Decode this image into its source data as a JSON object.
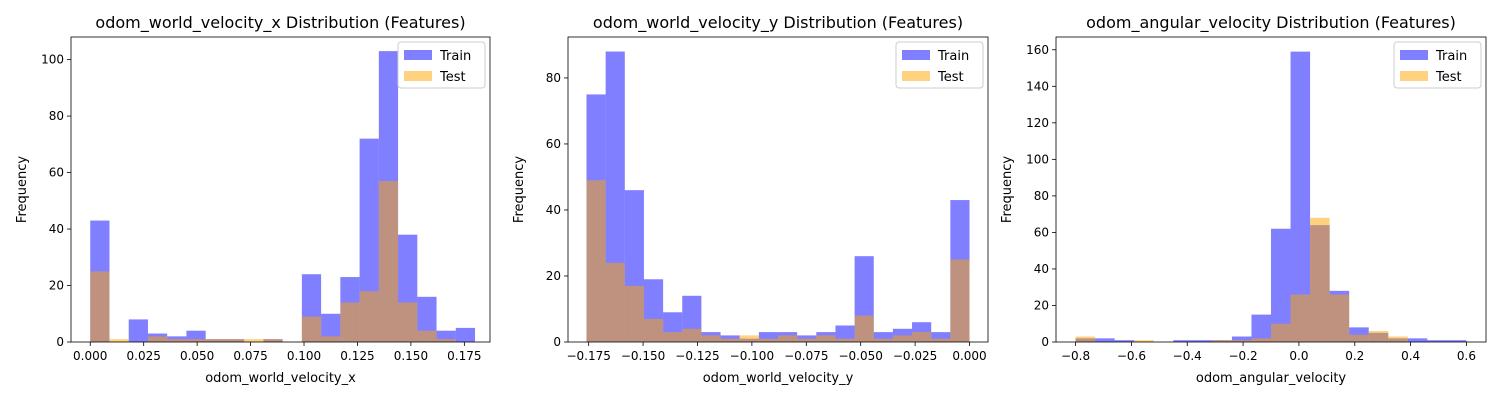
{
  "colors": {
    "train": "#0000ff",
    "test": "#ffa500",
    "alpha": 0.5
  },
  "chart_data": [
    {
      "type": "bar",
      "title": "odom_world_velocity_x Distribution (Features)",
      "xlabel": "odom_world_velocity_x",
      "ylabel": "Frequency",
      "xlim": [
        -0.009,
        0.187
      ],
      "ylim": [
        0,
        108
      ],
      "xticks": [
        0.0,
        0.025,
        0.05,
        0.075,
        0.1,
        0.125,
        0.15,
        0.175
      ],
      "xtick_labels": [
        "0.000",
        "0.025",
        "0.050",
        "0.075",
        "0.100",
        "0.125",
        "0.150",
        "0.175"
      ],
      "yticks": [
        0,
        20,
        40,
        60,
        80,
        100
      ],
      "legend": {
        "position": "upper right",
        "entries": [
          "Train",
          "Test"
        ]
      },
      "series": [
        {
          "name": "Train",
          "bin_edges": [
            0.0,
            0.009,
            0.018,
            0.027,
            0.036,
            0.045,
            0.054,
            0.063,
            0.072,
            0.081,
            0.09,
            0.099,
            0.108,
            0.117,
            0.126,
            0.135,
            0.144,
            0.153,
            0.162,
            0.171,
            0.18
          ],
          "counts": [
            43,
            0,
            8,
            3,
            2,
            4,
            1,
            1,
            0,
            1,
            0,
            24,
            10,
            23,
            72,
            103,
            38,
            16,
            4,
            5
          ]
        },
        {
          "name": "Test",
          "bin_edges": [
            0.0,
            0.009,
            0.018,
            0.027,
            0.036,
            0.045,
            0.054,
            0.063,
            0.072,
            0.081,
            0.09,
            0.099,
            0.108,
            0.117,
            0.126,
            0.135,
            0.144,
            0.153,
            0.162,
            0.171,
            0.18
          ],
          "counts": [
            25,
            1,
            0,
            2,
            1,
            1,
            1,
            1,
            1,
            1,
            0,
            9,
            2,
            14,
            18,
            57,
            14,
            4,
            1,
            0
          ]
        }
      ]
    },
    {
      "type": "bar",
      "title": "odom_world_velocity_y Distribution (Features)",
      "xlabel": "odom_world_velocity_y",
      "ylabel": "Frequency",
      "xlim": [
        -0.1845,
        0.0085
      ],
      "ylim": [
        0,
        92.4
      ],
      "xticks": [
        -0.175,
        -0.15,
        -0.125,
        -0.1,
        -0.075,
        -0.05,
        -0.025,
        0.0
      ],
      "xtick_labels": [
        "−0.175",
        "−0.150",
        "−0.125",
        "−0.100",
        "−0.075",
        "−0.050",
        "−0.025",
        "0.000"
      ],
      "yticks": [
        0,
        20,
        40,
        60,
        80
      ],
      "legend": {
        "position": "upper right",
        "entries": [
          "Train",
          "Test"
        ]
      },
      "series": [
        {
          "name": "Train",
          "bin_edges": [
            -0.176,
            -0.1672,
            -0.1584,
            -0.1496,
            -0.1408,
            -0.132,
            -0.1232,
            -0.1144,
            -0.1056,
            -0.0968,
            -0.088,
            -0.0792,
            -0.0704,
            -0.0616,
            -0.0528,
            -0.044,
            -0.0352,
            -0.0264,
            -0.0176,
            -0.0088,
            0.0
          ],
          "counts": [
            75,
            88,
            46,
            19,
            9,
            14,
            3,
            2,
            1,
            3,
            3,
            2,
            3,
            5,
            26,
            3,
            4,
            6,
            3,
            43
          ]
        },
        {
          "name": "Test",
          "bin_edges": [
            -0.176,
            -0.1672,
            -0.1584,
            -0.1496,
            -0.1408,
            -0.132,
            -0.1232,
            -0.1144,
            -0.1056,
            -0.0968,
            -0.088,
            -0.0792,
            -0.0704,
            -0.0616,
            -0.0528,
            -0.044,
            -0.0352,
            -0.0264,
            -0.0176,
            -0.0088,
            0.0
          ],
          "counts": [
            49,
            24,
            17,
            7,
            3,
            4,
            2,
            1,
            2,
            1,
            2,
            1,
            2,
            1,
            8,
            1,
            2,
            3,
            1,
            25
          ]
        }
      ]
    },
    {
      "type": "bar",
      "title": "odom_angular_velocity Distribution (Features)",
      "xlabel": "odom_angular_velocity",
      "ylabel": "Frequency",
      "xlim": [
        -0.87,
        0.67
      ],
      "ylim": [
        0,
        167
      ],
      "xticks": [
        -0.8,
        -0.6,
        -0.4,
        -0.2,
        0.0,
        0.2,
        0.4,
        0.6
      ],
      "xtick_labels": [
        "−0.8",
        "−0.6",
        "−0.4",
        "−0.2",
        "0.0",
        "0.2",
        "0.4",
        "0.6"
      ],
      "yticks": [
        0,
        20,
        40,
        60,
        80,
        100,
        120,
        140,
        160
      ],
      "legend": {
        "position": "upper right",
        "entries": [
          "Train",
          "Test"
        ]
      },
      "series": [
        {
          "name": "Train",
          "bin_edges": [
            -0.8,
            -0.73,
            -0.66,
            -0.59,
            -0.52,
            -0.45,
            -0.38,
            -0.31,
            -0.24,
            -0.17,
            -0.1,
            -0.03,
            0.04,
            0.11,
            0.18,
            0.25,
            0.32,
            0.39,
            0.46,
            0.53,
            0.6
          ],
          "counts": [
            2,
            2,
            1,
            0,
            0,
            1,
            1,
            1,
            3,
            15,
            62,
            159,
            64,
            28,
            8,
            5,
            2,
            2,
            1,
            1
          ]
        },
        {
          "name": "Test",
          "bin_edges": [
            -0.8,
            -0.73,
            -0.66,
            -0.59,
            -0.52,
            -0.45,
            -0.38,
            -0.31,
            -0.24,
            -0.17,
            -0.1,
            -0.03,
            0.04,
            0.11,
            0.18,
            0.25,
            0.32,
            0.39,
            0.46,
            0.53,
            0.6
          ],
          "counts": [
            3,
            0,
            0,
            1,
            0,
            0,
            0,
            1,
            1,
            2,
            10,
            26,
            68,
            26,
            4,
            6,
            3,
            0,
            0,
            0
          ]
        }
      ]
    }
  ]
}
